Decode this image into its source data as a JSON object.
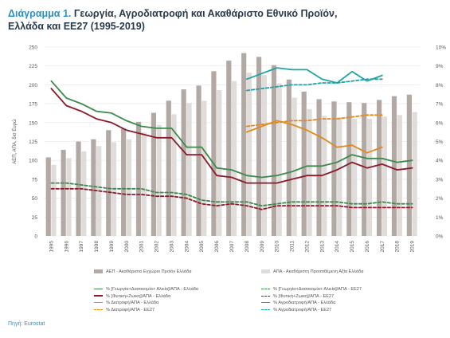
{
  "title": {
    "number": "Διάγραμμα 1.",
    "text": "Γεωργία, Αγροδιατροφή και Ακαθάριστο Εθνικό Προϊόν,",
    "line2": "Ελλάδα και ΕΕ27 (1995-2019)"
  },
  "source": "Πηγή: Eurostat",
  "chart_data": {
    "type": "bar",
    "categories": [
      "1995",
      "1996",
      "1997",
      "1998",
      "1999",
      "2000",
      "2001",
      "2002",
      "2003",
      "2004",
      "2005",
      "2006",
      "2007",
      "2008",
      "2009",
      "2010",
      "2011",
      "2012",
      "2013",
      "2014",
      "2015",
      "2016",
      "2017",
      "2018",
      "2019"
    ],
    "ylabel": "ΑΕΠ, ΑΠΑ, δισ Ευρώ",
    "ylim": [
      0,
      250
    ],
    "yticks": [
      "0",
      "25",
      "50",
      "75",
      "100",
      "125",
      "150",
      "175",
      "200",
      "225",
      "250"
    ],
    "y2lim": [
      0,
      10
    ],
    "y2ticks": [
      "0%",
      "1%",
      "2%",
      "3%",
      "4%",
      "5%",
      "6%",
      "7%",
      "8%",
      "9%",
      "10%"
    ],
    "grid": true,
    "bars": [
      {
        "name": "ΑΕΠ - Ακαθάριστο Εγχώριο Προϊόν Ελλάδα",
        "color": "#b3a9a4",
        "values": [
          104,
          114,
          125,
          128,
          140,
          142,
          151,
          163,
          179,
          194,
          199,
          218,
          232,
          242,
          237,
          226,
          207,
          191,
          181,
          178,
          177,
          176,
          180,
          185,
          187
        ]
      },
      {
        "name": "ΑΠΑ - Ακαθάριστη Προστιθέμενη Αξία Ελλάδα",
        "color": "#e0dcd9",
        "values": [
          94,
          103,
          112,
          119,
          124,
          128,
          137,
          147,
          161,
          176,
          179,
          193,
          205,
          216,
          213,
          202,
          183,
          168,
          159,
          157,
          155,
          155,
          158,
          160,
          164
        ]
      }
    ],
    "series": [
      {
        "name": "% [Γεωργία+Δασοκομία+ Αλιεία]/ΑΠΑ - Ελλάδα",
        "color": "#3d8a4c",
        "dash": false,
        "axis": "right",
        "x": [
          "1995",
          "1996",
          "1997",
          "1998",
          "1999",
          "2000",
          "2001",
          "2002",
          "2003",
          "2004",
          "2005",
          "2006",
          "2007",
          "2008",
          "2009",
          "2010",
          "2011",
          "2012",
          "2013",
          "2014",
          "2015",
          "2016",
          "2017",
          "2018",
          "2019"
        ],
        "values": [
          8.2,
          7.3,
          7.0,
          6.6,
          6.5,
          6.1,
          5.8,
          5.7,
          5.7,
          4.7,
          4.7,
          3.6,
          3.5,
          3.2,
          3.1,
          3.2,
          3.4,
          3.7,
          3.7,
          3.9,
          4.3,
          4.1,
          4.1,
          3.9,
          4.0
        ]
      },
      {
        "name": "% [Φυτική+Ζωική]/ΑΠΑ - Ελλάδα",
        "color": "#8b1a2b",
        "dash": false,
        "axis": "right",
        "x": [
          "1995",
          "1996",
          "1997",
          "1998",
          "1999",
          "2000",
          "2001",
          "2002",
          "2003",
          "2004",
          "2005",
          "2006",
          "2007",
          "2008",
          "2009",
          "2010",
          "2011",
          "2012",
          "2013",
          "2014",
          "2015",
          "2016",
          "2017",
          "2018",
          "2019"
        ],
        "values": [
          7.8,
          6.9,
          6.6,
          6.2,
          6.0,
          5.6,
          5.4,
          5.2,
          5.2,
          4.3,
          4.3,
          3.2,
          3.1,
          2.8,
          2.8,
          2.8,
          3.0,
          3.2,
          3.2,
          3.5,
          3.9,
          3.6,
          3.8,
          3.5,
          3.6
        ]
      },
      {
        "name": "% [Γεωργία+Δασοκομία+ Αλιεία]/ΑΠΑ - ΕΕ27",
        "color": "#3d8a4c",
        "dash": true,
        "axis": "right",
        "x": [
          "1995",
          "1996",
          "1997",
          "1998",
          "1999",
          "2000",
          "2001",
          "2002",
          "2003",
          "2004",
          "2005",
          "2006",
          "2007",
          "2008",
          "2009",
          "2010",
          "2011",
          "2012",
          "2013",
          "2014",
          "2015",
          "2016",
          "2017",
          "2018",
          "2019"
        ],
        "values": [
          2.8,
          2.8,
          2.7,
          2.6,
          2.5,
          2.5,
          2.5,
          2.3,
          2.3,
          2.2,
          1.9,
          1.8,
          1.8,
          1.8,
          1.6,
          1.7,
          1.8,
          1.8,
          1.8,
          1.8,
          1.7,
          1.7,
          1.8,
          1.7,
          1.7
        ]
      },
      {
        "name": "% [Φυτική+Ζωική]/ΑΠΑ - ΕΕ27",
        "color": "#8b1a2b",
        "dash": true,
        "axis": "right",
        "x": [
          "1995",
          "1996",
          "1997",
          "1998",
          "1999",
          "2000",
          "2001",
          "2002",
          "2003",
          "2004",
          "2005",
          "2006",
          "2007",
          "2008",
          "2009",
          "2010",
          "2011",
          "2012",
          "2013",
          "2014",
          "2015",
          "2016",
          "2017",
          "2018",
          "2019"
        ],
        "values": [
          2.5,
          2.5,
          2.5,
          2.4,
          2.3,
          2.2,
          2.2,
          2.1,
          2.1,
          2.0,
          1.7,
          1.6,
          1.7,
          1.6,
          1.4,
          1.6,
          1.6,
          1.6,
          1.6,
          1.6,
          1.5,
          1.5,
          1.5,
          1.5,
          1.5
        ]
      },
      {
        "name": "% Διατροφή/ΑΠΑ - Ελλάδα",
        "color": "#e08a1e",
        "dash": false,
        "axis": "right",
        "x": [
          "2008",
          "2009",
          "2010",
          "2011",
          "2012",
          "2013",
          "2014",
          "2015",
          "2016",
          "2017"
        ],
        "values": [
          5.5,
          5.8,
          6.1,
          5.9,
          5.6,
          5.2,
          4.7,
          4.8,
          4.4,
          4.7
        ]
      },
      {
        "name": "% Αγροδιατροφή/ΑΠΑ - Ελλάδα",
        "color": "#1fa3a8",
        "dash": false,
        "axis": "right",
        "x": [
          "2008",
          "2009",
          "2010",
          "2011",
          "2012",
          "2013",
          "2014",
          "2015",
          "2016",
          "2017"
        ],
        "values": [
          8.3,
          8.6,
          8.9,
          8.8,
          8.8,
          8.3,
          8.1,
          8.7,
          8.2,
          8.5
        ]
      },
      {
        "name": "% Διατροφή/ΑΠΑ - ΕΕ27",
        "color": "#e08a1e",
        "dash": true,
        "axis": "right",
        "x": [
          "2008",
          "2009",
          "2010",
          "2011",
          "2012",
          "2013",
          "2014",
          "2015",
          "2016",
          "2017"
        ],
        "values": [
          5.8,
          5.9,
          6.0,
          6.1,
          6.1,
          6.2,
          6.2,
          6.3,
          6.4,
          6.4
        ]
      },
      {
        "name": "% Αγροδιατροφή/ΑΠΑ - ΕΕ27",
        "color": "#1fa3a8",
        "dash": true,
        "axis": "right",
        "x": [
          "2008",
          "2009",
          "2010",
          "2011",
          "2012",
          "2013",
          "2014",
          "2015",
          "2016",
          "2017"
        ],
        "values": [
          7.7,
          7.8,
          7.9,
          8.0,
          8.0,
          8.1,
          8.1,
          8.2,
          8.3,
          8.3
        ]
      }
    ]
  }
}
